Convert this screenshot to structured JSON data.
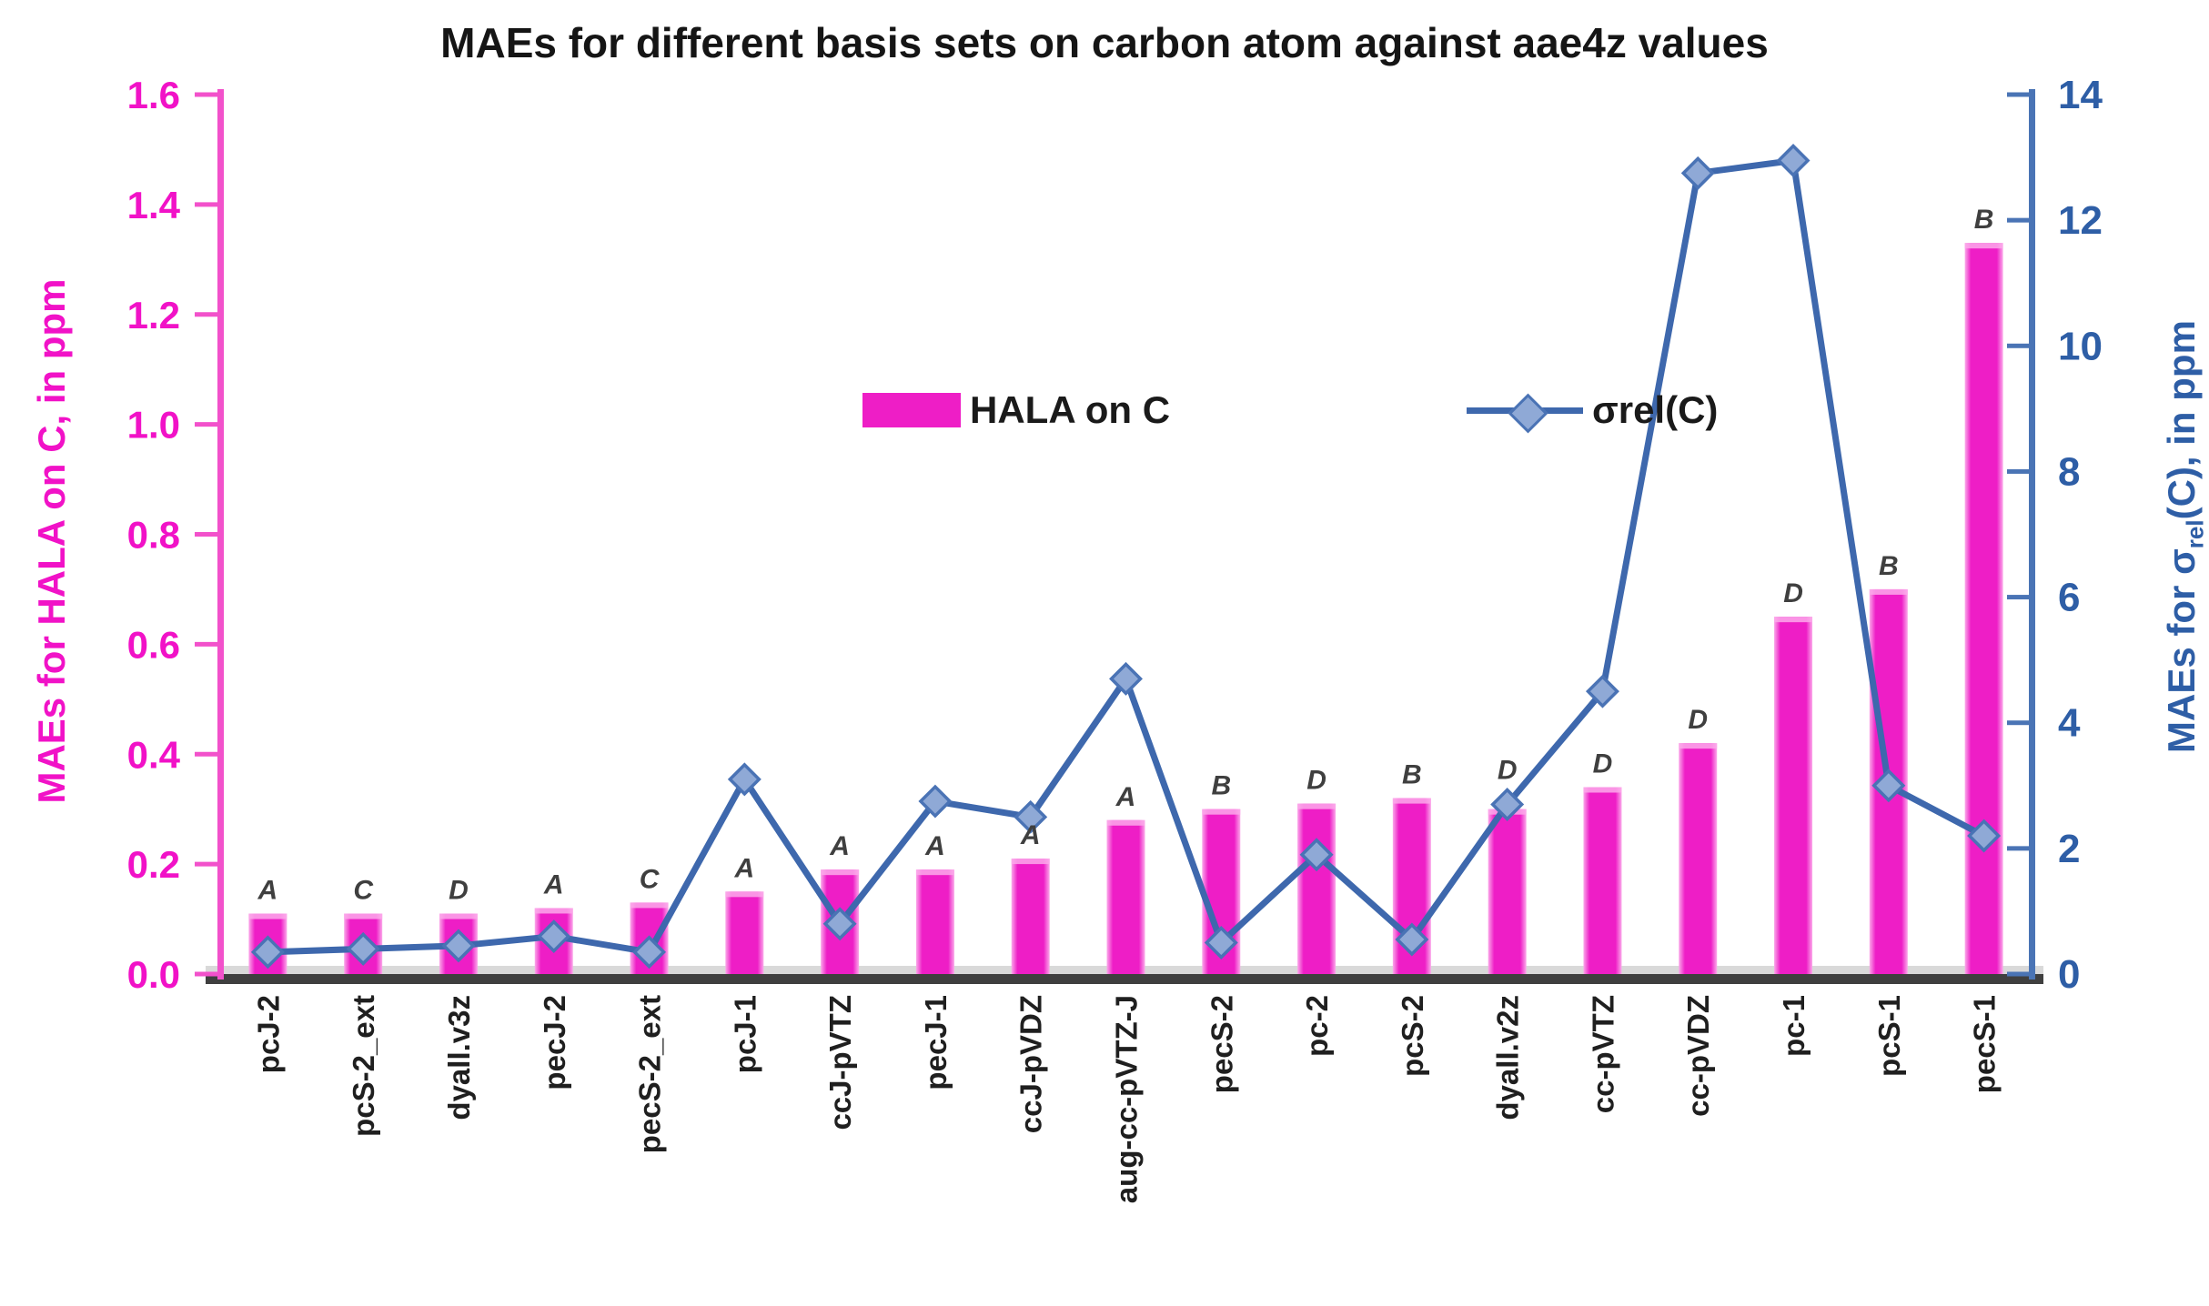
{
  "title": "MAEs for different basis sets on carbon atom against aae4z values",
  "legend": {
    "bar_label": "HALA on C",
    "line_label": "σrel(C)"
  },
  "left_axis": {
    "title": "MAEs for HALA on C, in ppm",
    "ticks": [
      "0.0",
      "0.2",
      "0.4",
      "0.6",
      "0.8",
      "1.0",
      "1.2",
      "1.4",
      "1.6"
    ],
    "min": 0,
    "max": 1.6,
    "color": "#F112C7"
  },
  "right_axis": {
    "title_prefix": "MAEs for σ",
    "title_sub": "rel",
    "title_suffix": "(C), in ppm",
    "ticks": [
      "0",
      "2",
      "4",
      "6",
      "8",
      "10",
      "12",
      "14"
    ],
    "min": 0,
    "max": 14,
    "color": "#2E5EA6"
  },
  "colors": {
    "bar": "#EE1EC6",
    "bar_edge": "#FBA9EA",
    "left_axis_line": "#F251CB",
    "line": "#3E68AD",
    "marker_fill": "#8FA9D6",
    "marker_stroke": "#4A73B5",
    "right_axis_line": "#4A74B5",
    "annotation": "#3F3F3F",
    "baseline": "#3F3F3F",
    "baseline_shadow": "#D9D9D9",
    "category_text": "#1F1F1F"
  },
  "chart_data": {
    "type": "combo-bar-line",
    "categories": [
      "pcJ-2",
      "pcS-2_ext",
      "dyall.v3z",
      "pecJ-2",
      "pecS-2_ext",
      "pcJ-1",
      "ccJ-pVTZ",
      "pecJ-1",
      "ccJ-pVDZ",
      "aug-cc-pVTZ-J",
      "pecS-2",
      "pc-2",
      "pcS-2",
      "dyall.v2z",
      "cc-pVTZ",
      "cc-pVDZ",
      "pc-1",
      "pcS-1",
      "pecS-1"
    ],
    "series": [
      {
        "name": "HALA on C",
        "type": "bar",
        "axis": "left",
        "values": [
          0.11,
          0.11,
          0.11,
          0.12,
          0.13,
          0.15,
          0.19,
          0.19,
          0.21,
          0.28,
          0.3,
          0.31,
          0.32,
          0.3,
          0.34,
          0.42,
          0.65,
          0.7,
          1.33
        ],
        "annotations": [
          "A",
          "C",
          "D",
          "A",
          "C",
          "A",
          "A",
          "A",
          "A",
          "A",
          "B",
          "D",
          "B",
          "D",
          "D",
          "D",
          "D",
          "B",
          "B"
        ]
      },
      {
        "name": "σrel(C)",
        "type": "line",
        "axis": "right",
        "values": [
          0.35,
          0.4,
          0.45,
          0.6,
          0.35,
          3.1,
          0.8,
          2.75,
          2.5,
          4.7,
          0.5,
          1.9,
          0.55,
          2.7,
          4.5,
          12.75,
          12.95,
          3.0,
          2.2
        ]
      }
    ],
    "left_ylim": [
      0,
      1.6
    ],
    "right_ylim": [
      0,
      14
    ],
    "grid": false,
    "legend_position": "upper-center-inside"
  }
}
